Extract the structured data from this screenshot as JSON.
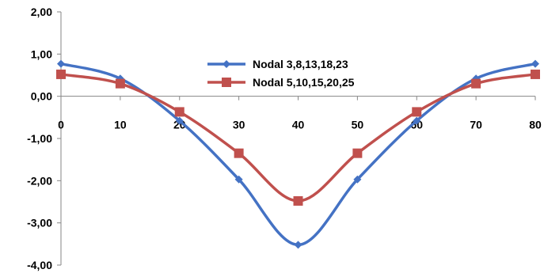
{
  "chart_data": {
    "type": "line",
    "x": [
      0,
      10,
      20,
      30,
      40,
      50,
      60,
      70,
      80
    ],
    "xlim": [
      0,
      80
    ],
    "ylim": [
      -4,
      2
    ],
    "x_ticks": [
      "0",
      "10",
      "20",
      "30",
      "40",
      "50",
      "60",
      "70",
      "80"
    ],
    "y_ticks": [
      "2,00",
      "1,00",
      "0,00",
      "-1,00",
      "-2,00",
      "-3,00",
      "-4,00"
    ],
    "y_tick_values": [
      2,
      1,
      0,
      -1,
      -2,
      -3,
      -4
    ],
    "grid": false,
    "smooth": true,
    "legend_position": "right",
    "series": [
      {
        "name": "Nodal 3,8,13,18,23",
        "color": "#4472C4",
        "marker": "diamond",
        "values": [
          0.77,
          0.42,
          -0.58,
          -1.97,
          -3.52,
          -1.97,
          -0.58,
          0.42,
          0.77
        ]
      },
      {
        "name": "Nodal 5,10,15,20,25",
        "color": "#C0504D",
        "marker": "square",
        "values": [
          0.52,
          0.3,
          -0.37,
          -1.35,
          -2.48,
          -1.35,
          -0.37,
          0.3,
          0.52
        ]
      }
    ]
  }
}
